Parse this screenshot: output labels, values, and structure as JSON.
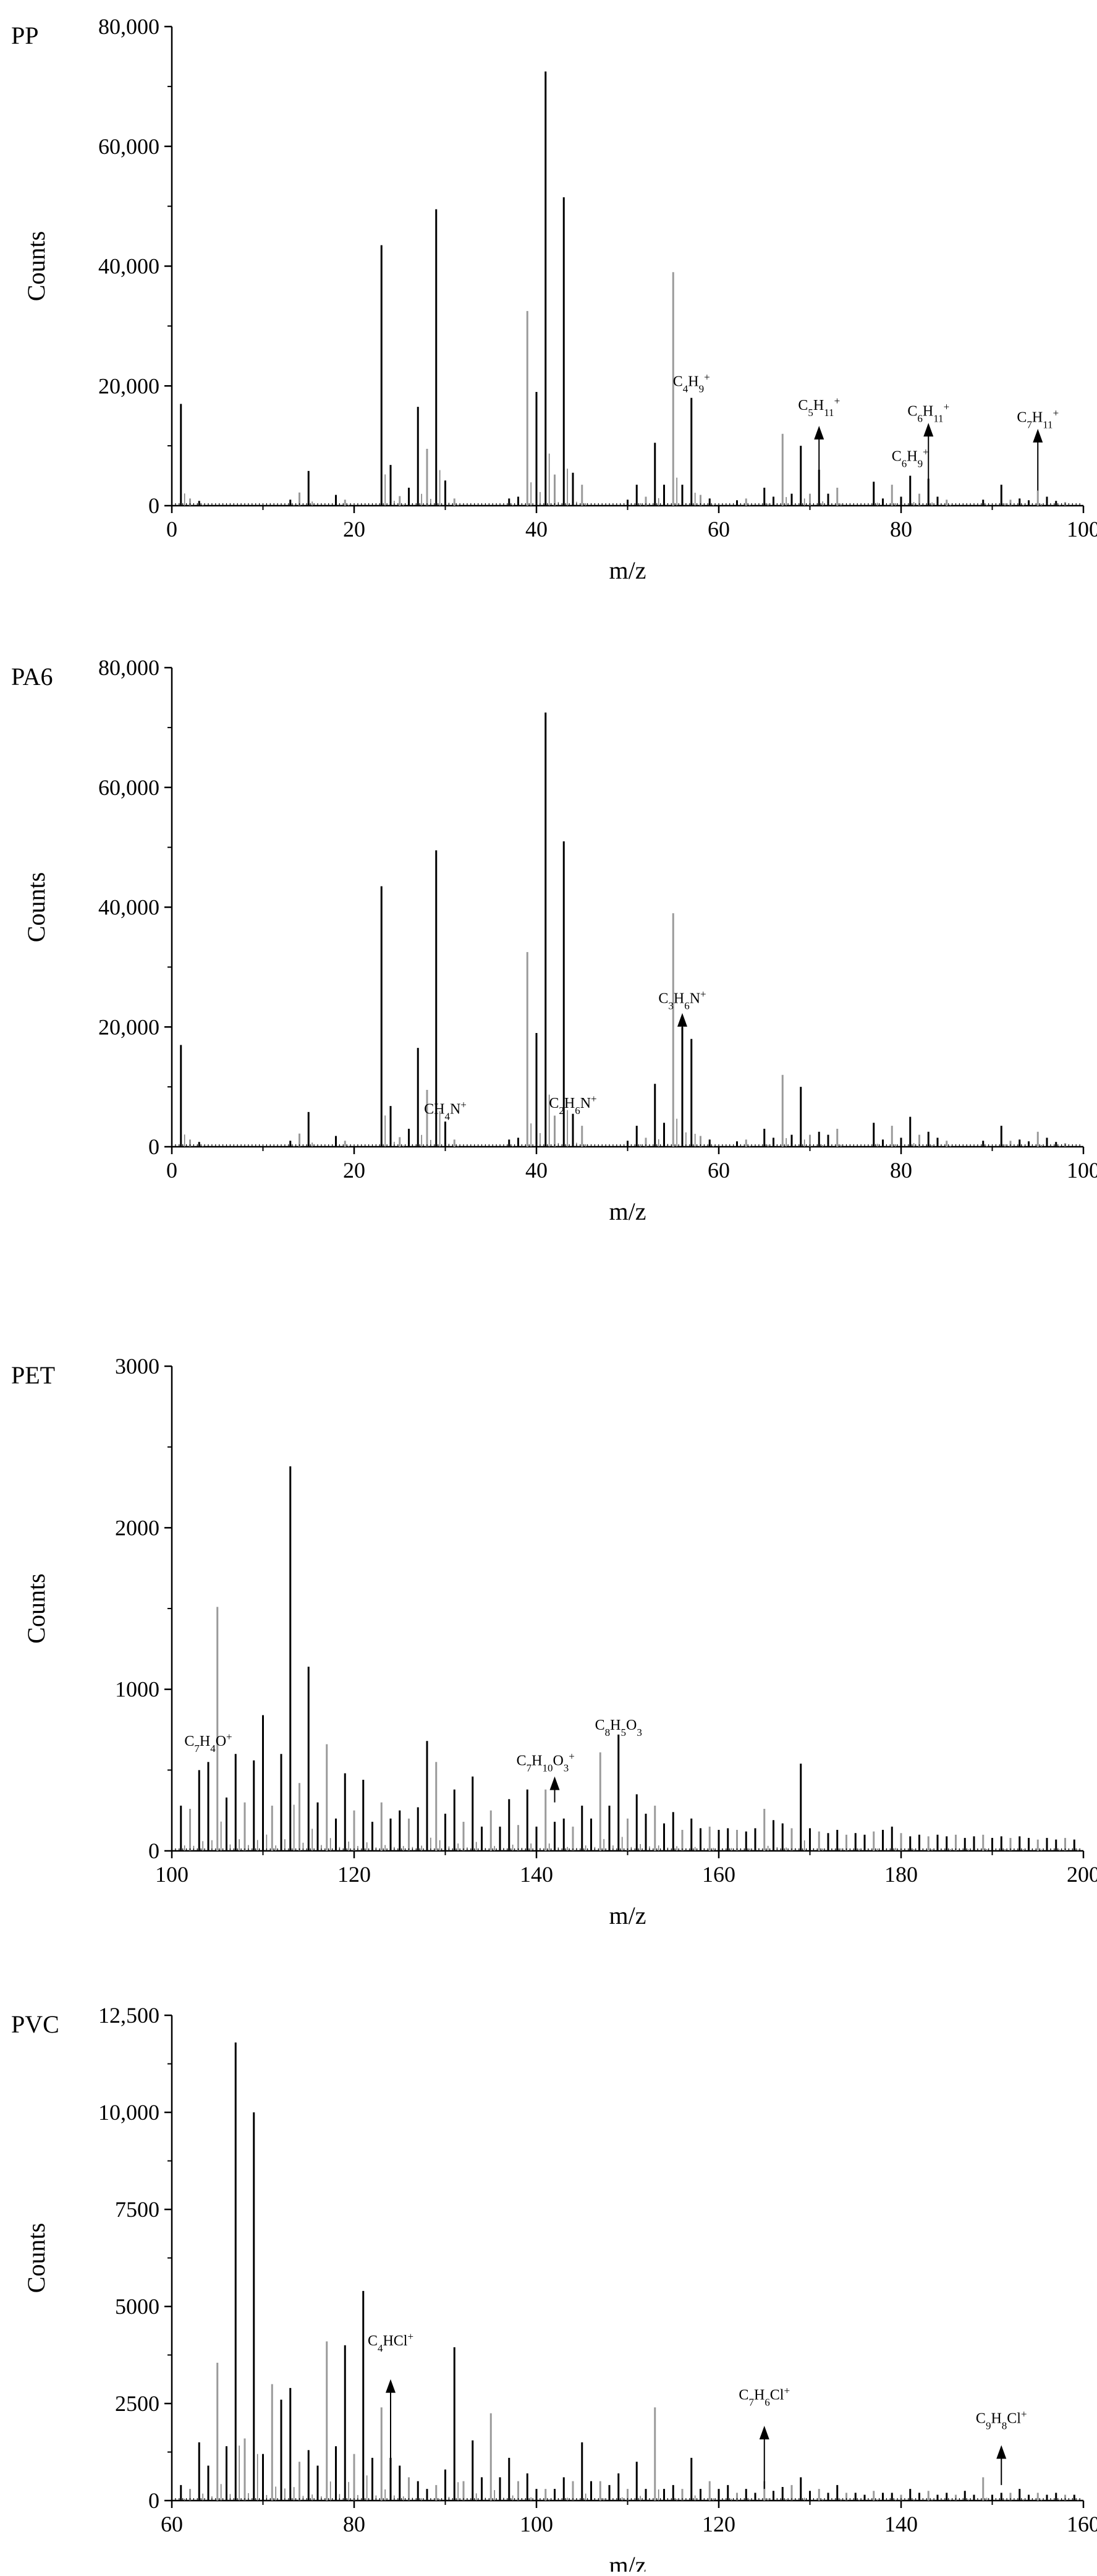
{
  "chart_data": [
    {
      "type": "bar",
      "panel_label": "PP",
      "xlabel": "m/z",
      "ylabel": "Counts",
      "xlim": [
        0,
        100
      ],
      "ylim": [
        0,
        80000
      ],
      "xticks": [
        "0",
        "20",
        "40",
        "60",
        "80",
        "100"
      ],
      "yticks": [
        "0",
        "20,000",
        "40,000",
        "60,000",
        "80,000"
      ],
      "grid": false,
      "peaks": {
        "x": [
          1,
          2,
          3,
          13,
          14,
          15,
          18,
          19,
          23,
          24,
          25,
          26,
          27,
          28,
          29,
          30,
          31,
          37,
          38,
          39,
          40,
          41,
          42,
          43,
          44,
          45,
          50,
          51,
          52,
          53,
          54,
          55,
          56,
          57,
          58,
          59,
          62,
          63,
          65,
          66,
          67,
          68,
          69,
          70,
          71,
          72,
          73,
          77,
          78,
          79,
          80,
          81,
          82,
          83,
          84,
          85,
          89,
          91,
          92,
          93,
          94,
          95,
          96,
          97,
          98
        ],
        "y": [
          17000,
          1200,
          800,
          1000,
          2200,
          5800,
          1800,
          1000,
          43500,
          6800,
          1600,
          3000,
          16500,
          9500,
          49500,
          4200,
          1200,
          1200,
          1500,
          32500,
          19000,
          72500,
          5200,
          51500,
          5500,
          3500,
          1000,
          3500,
          1500,
          10500,
          3500,
          39000,
          3500,
          18000,
          1800,
          1200,
          900,
          1200,
          3000,
          1500,
          12000,
          2000,
          10000,
          2000,
          6000,
          2000,
          3000,
          4000,
          1200,
          3500,
          1500,
          5000,
          2000,
          4500,
          1500,
          1000,
          1000,
          3500,
          1000,
          1200,
          900,
          2500,
          1500,
          800,
          600
        ]
      },
      "annotations": [
        {
          "label": "C4H9",
          "sub": "4",
          "sub2": "9",
          "html": [
            "C",
            "4",
            "H",
            "9",
            "+"
          ],
          "x": 57,
          "y": 20000
        },
        {
          "html": [
            "C",
            "5",
            "H",
            "11",
            "+"
          ],
          "x": 71,
          "y": 16000,
          "arrow": [
            71,
            3000,
            12500
          ]
        },
        {
          "html": [
            "C",
            "6",
            "H",
            "9",
            "+"
          ],
          "x": 81,
          "y": 7500
        },
        {
          "html": [
            "C",
            "6",
            "H",
            "11",
            "+"
          ],
          "x": 83,
          "y": 15000,
          "arrow": [
            83,
            3500,
            13000
          ]
        },
        {
          "html": [
            "C",
            "7",
            "H",
            "11",
            "+"
          ],
          "x": 95,
          "y": 14000,
          "arrow": [
            95,
            2500,
            12000
          ]
        }
      ]
    },
    {
      "type": "bar",
      "panel_label": "PA6",
      "xlabel": "m/z",
      "ylabel": "Counts",
      "xlim": [
        0,
        100
      ],
      "ylim": [
        0,
        80000
      ],
      "xticks": [
        "0",
        "20",
        "40",
        "60",
        "80",
        "100"
      ],
      "yticks": [
        "0",
        "20,000",
        "40,000",
        "60,000",
        "80,000"
      ],
      "grid": false,
      "peaks": {
        "x": [
          1,
          2,
          3,
          13,
          14,
          15,
          18,
          19,
          23,
          24,
          25,
          26,
          27,
          28,
          29,
          30,
          31,
          37,
          38,
          39,
          40,
          41,
          42,
          43,
          44,
          45,
          50,
          51,
          52,
          53,
          54,
          55,
          56,
          57,
          58,
          59,
          62,
          63,
          65,
          66,
          67,
          68,
          69,
          70,
          71,
          72,
          73,
          77,
          78,
          79,
          80,
          81,
          82,
          83,
          84,
          85,
          89,
          91,
          92,
          93,
          94,
          95,
          96,
          97,
          98
        ],
        "y": [
          17000,
          1200,
          800,
          1000,
          2200,
          5800,
          1800,
          1000,
          43500,
          6800,
          1600,
          3000,
          16500,
          9500,
          49500,
          4200,
          1200,
          1200,
          1500,
          32500,
          19000,
          72500,
          5200,
          51000,
          5500,
          3500,
          1000,
          3500,
          1500,
          10500,
          4000,
          39000,
          20000,
          18000,
          1800,
          1200,
          900,
          1200,
          3000,
          1500,
          12000,
          2000,
          10000,
          2000,
          2500,
          2000,
          3000,
          4000,
          1200,
          3500,
          1500,
          5000,
          2000,
          2500,
          1500,
          1000,
          1000,
          3500,
          1000,
          1200,
          900,
          2500,
          1500,
          800,
          600
        ]
      },
      "annotations": [
        {
          "html": [
            "CH",
            "4",
            "N",
            "+"
          ],
          "x": 30,
          "y": 5500
        },
        {
          "html": [
            "C",
            "2",
            "H",
            "6",
            "N",
            "+"
          ],
          "x": 44,
          "y": 6500
        },
        {
          "html": [
            "C",
            "3",
            "H",
            "6",
            "N",
            "+"
          ],
          "x": 56,
          "y": 24000,
          "arrow": [
            56,
            3500,
            21500
          ]
        }
      ]
    },
    {
      "type": "bar",
      "panel_label": "PET",
      "xlabel": "m/z",
      "ylabel": "Counts",
      "xlim": [
        100,
        200
      ],
      "ylim": [
        0,
        3000
      ],
      "xticks": [
        "100",
        "120",
        "140",
        "160",
        "180",
        "200"
      ],
      "yticks": [
        "0",
        "1000",
        "2000",
        "3000"
      ],
      "grid": false,
      "peaks": {
        "x": [
          101,
          102,
          103,
          104,
          105,
          106,
          107,
          108,
          109,
          110,
          111,
          112,
          113,
          114,
          115,
          116,
          117,
          118,
          119,
          120,
          121,
          122,
          123,
          124,
          125,
          126,
          127,
          128,
          129,
          130,
          131,
          132,
          133,
          134,
          135,
          136,
          137,
          138,
          139,
          140,
          141,
          142,
          143,
          144,
          145,
          146,
          147,
          148,
          149,
          150,
          151,
          152,
          153,
          154,
          155,
          156,
          157,
          158,
          159,
          160,
          161,
          162,
          163,
          164,
          165,
          166,
          167,
          168,
          169,
          170,
          171,
          172,
          173,
          174,
          175,
          176,
          177,
          178,
          179,
          180,
          181,
          182,
          183,
          184,
          185,
          186,
          187,
          188,
          189,
          190,
          191,
          192,
          193,
          194,
          195,
          196,
          197,
          198,
          199
        ],
        "y": [
          280,
          260,
          500,
          550,
          1510,
          330,
          600,
          300,
          560,
          840,
          280,
          600,
          2380,
          420,
          1140,
          300,
          660,
          200,
          480,
          250,
          440,
          180,
          300,
          200,
          250,
          200,
          270,
          680,
          550,
          230,
          380,
          180,
          460,
          150,
          250,
          150,
          320,
          160,
          380,
          150,
          380,
          180,
          200,
          150,
          280,
          200,
          610,
          280,
          720,
          200,
          350,
          230,
          280,
          170,
          240,
          130,
          200,
          140,
          150,
          130,
          140,
          130,
          120,
          140,
          260,
          190,
          170,
          140,
          540,
          140,
          120,
          110,
          130,
          100,
          110,
          100,
          120,
          130,
          150,
          110,
          90,
          100,
          90,
          100,
          90,
          100,
          80,
          90,
          100,
          80,
          90,
          80,
          90,
          80,
          70,
          80,
          70,
          80,
          70
        ]
      },
      "annotations": [
        {
          "html": [
            "C",
            "7",
            "H",
            "4",
            "O",
            "+"
          ],
          "x": 104,
          "y": 650
        },
        {
          "html": [
            "C",
            "7",
            "H",
            "10",
            "O",
            "3",
            "+"
          ],
          "x": 141,
          "y": 530,
          "arrow": [
            142,
            300,
            430
          ]
        },
        {
          "html": [
            "C",
            "8",
            "H",
            "5",
            "O",
            "3"
          ],
          "x": 149,
          "y": 750
        }
      ]
    },
    {
      "type": "bar",
      "panel_label": "PVC",
      "xlabel": "m/z",
      "ylabel": "Counts",
      "xlim": [
        60,
        160
      ],
      "ylim": [
        0,
        12500
      ],
      "xticks": [
        "60",
        "80",
        "100",
        "120",
        "140",
        "160"
      ],
      "yticks": [
        "0",
        "2500",
        "5000",
        "7500",
        "10,000",
        "12,500"
      ],
      "grid": false,
      "peaks": {
        "x": [
          61,
          62,
          63,
          64,
          65,
          66,
          67,
          68,
          69,
          70,
          71,
          72,
          73,
          74,
          75,
          76,
          77,
          78,
          79,
          80,
          81,
          82,
          83,
          84,
          85,
          86,
          87,
          88,
          89,
          90,
          91,
          92,
          93,
          94,
          95,
          96,
          97,
          98,
          99,
          100,
          101,
          102,
          103,
          104,
          105,
          106,
          107,
          108,
          109,
          110,
          111,
          112,
          113,
          114,
          115,
          116,
          117,
          118,
          119,
          120,
          121,
          122,
          123,
          124,
          125,
          126,
          127,
          128,
          129,
          130,
          131,
          132,
          133,
          134,
          135,
          136,
          137,
          138,
          139,
          140,
          141,
          142,
          143,
          144,
          145,
          146,
          147,
          148,
          149,
          150,
          151,
          152,
          153,
          154,
          155,
          156,
          157,
          158,
          159
        ],
        "y": [
          400,
          300,
          1500,
          900,
          3550,
          1400,
          11800,
          1600,
          10000,
          1200,
          3000,
          2600,
          2900,
          1000,
          1300,
          900,
          4100,
          1400,
          4000,
          1200,
          5400,
          1100,
          2400,
          1100,
          900,
          600,
          500,
          300,
          400,
          800,
          3950,
          500,
          1550,
          600,
          2250,
          600,
          1100,
          500,
          700,
          300,
          300,
          300,
          600,
          500,
          1500,
          500,
          500,
          400,
          700,
          300,
          1000,
          300,
          2400,
          300,
          400,
          300,
          1100,
          300,
          500,
          300,
          400,
          200,
          300,
          200,
          500,
          250,
          350,
          400,
          600,
          250,
          300,
          200,
          400,
          200,
          200,
          150,
          250,
          200,
          200,
          150,
          300,
          200,
          250,
          150,
          200,
          150,
          250,
          150,
          600,
          150,
          200,
          200,
          300,
          150,
          200,
          150,
          200,
          150,
          150
        ]
      },
      "annotations": [
        {
          "html": [
            "C",
            "4",
            "HCl",
            "+"
          ],
          "x": 84,
          "y": 4000,
          "arrow": [
            84,
            900,
            3000
          ]
        },
        {
          "html": [
            "C",
            "7",
            "H",
            "6",
            "Cl",
            "+"
          ],
          "x": 125,
          "y": 2600,
          "arrow": [
            125,
            300,
            1800
          ]
        },
        {
          "html": [
            "C",
            "9",
            "H",
            "8",
            "Cl",
            "+"
          ],
          "x": 151,
          "y": 2000,
          "arrow": [
            151,
            400,
            1300
          ]
        }
      ]
    }
  ]
}
